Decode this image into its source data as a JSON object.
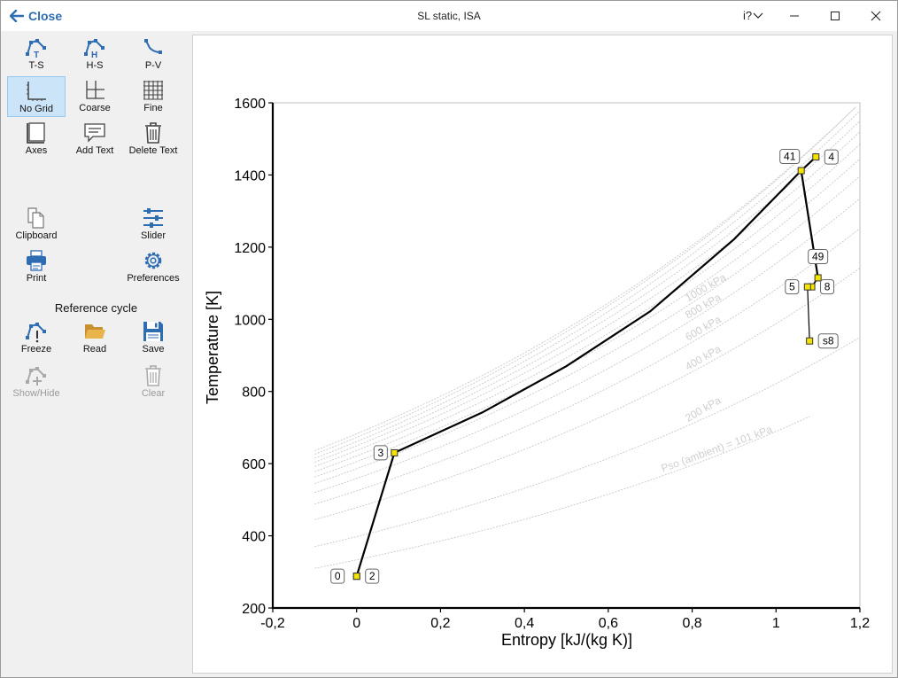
{
  "titlebar": {
    "close_label": "Close",
    "title": "SL static, ISA",
    "help_label": "i?"
  },
  "toolbar": {
    "ts": "T-S",
    "hs": "H-S",
    "pv": "P-V",
    "no_grid": "No Grid",
    "coarse": "Coarse",
    "fine": "Fine",
    "axes": "Axes",
    "add_text": "Add Text",
    "delete_text": "Delete Text",
    "clipboard": "Clipboard",
    "slider": "Slider",
    "print": "Print",
    "preferences": "Preferences",
    "reference_cycle": "Reference cycle",
    "freeze": "Freeze",
    "read": "Read",
    "save": "Save",
    "show_hide": "Show/Hide",
    "clear": "Clear"
  },
  "colors": {
    "accent": "#2f6db3",
    "selected_bg": "#cce4f7",
    "station_marker": "#f5e400",
    "isobar": "#c8c8c8"
  },
  "chart_data": {
    "type": "line",
    "xlabel": "Entropy [kJ/(kg K)]",
    "ylabel": "Temperature [K]",
    "xlim": [
      -0.2,
      1.2
    ],
    "ylim": [
      200,
      1600
    ],
    "xticks": [
      "-0,2",
      "0",
      "0,2",
      "0,4",
      "0,6",
      "0,8",
      "1",
      "1,2"
    ],
    "yticks": [
      "200",
      "400",
      "600",
      "800",
      "1000",
      "1200",
      "1400",
      "1600"
    ],
    "grid": false,
    "cycle": [
      {
        "label": "0",
        "s": 0.0,
        "T": 288
      },
      {
        "label": "2",
        "s": 0.0,
        "T": 288
      },
      {
        "label": "3",
        "s": 0.09,
        "T": 630
      },
      {
        "label": "41",
        "s": 1.06,
        "T": 1412
      },
      {
        "label": "4",
        "s": 1.095,
        "T": 1450
      },
      {
        "label": "49",
        "s": 1.1,
        "T": 1115
      },
      {
        "label": "8",
        "s": 1.085,
        "T": 1090
      },
      {
        "label": "5",
        "s": 1.075,
        "T": 1090
      },
      {
        "label": "s8",
        "s": 1.08,
        "T": 940
      }
    ],
    "combustion_curve": [
      [
        0.09,
        630
      ],
      [
        0.3,
        742
      ],
      [
        0.5,
        870
      ],
      [
        0.7,
        1022
      ],
      [
        0.9,
        1222
      ],
      [
        1.06,
        1412
      ]
    ],
    "isobars": [
      {
        "label": "Pso (ambient) =  101 kPa",
        "s0": -0.1,
        "T0": 310,
        "T_end": 797
      },
      {
        "label": "200 kPa",
        "s0": -0.1,
        "T0": 370,
        "T_end": 950
      },
      {
        "label": "400 kPa",
        "s0": -0.1,
        "T0": 445,
        "T_end": 1142
      },
      {
        "label": "600 kPa",
        "s0": -0.1,
        "T0": 488,
        "T_end": 1252
      },
      {
        "label": "800 kPa",
        "s0": -0.1,
        "T0": 520,
        "T_end": 1335
      },
      {
        "label": "1000 kPa",
        "s0": -0.1,
        "T0": 545,
        "T_end": 1397
      },
      {
        "label": "",
        "s0": -0.1,
        "T0": 563,
        "T_end": 1445
      },
      {
        "label": "",
        "s0": -0.1,
        "T0": 578,
        "T_end": 1485
      },
      {
        "label": "",
        "s0": -0.1,
        "T0": 592,
        "T_end": 1520
      },
      {
        "label": "",
        "s0": -0.1,
        "T0": 604,
        "T_end": 1550
      },
      {
        "label": "",
        "s0": -0.1,
        "T0": 615,
        "T_end": 1578
      },
      {
        "label": "",
        "s0": -0.1,
        "T0": 626,
        "T_end": 1600
      },
      {
        "label": "",
        "s0": -0.1,
        "T0": 636,
        "T_end": 1600
      }
    ]
  }
}
